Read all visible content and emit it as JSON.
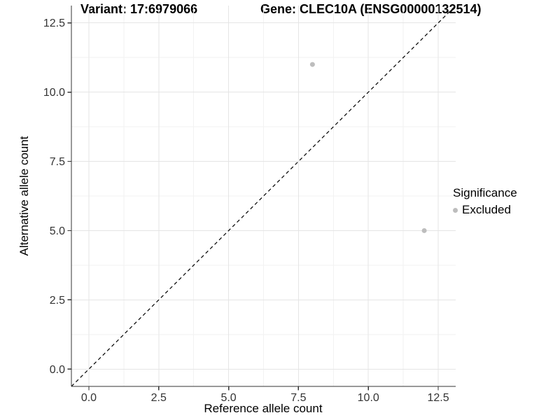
{
  "plot_title": {
    "variant": "Variant: 17:6979066",
    "gene": "Gene: CLEC10A (ENSG00000132514)"
  },
  "legend": {
    "title": "Significance",
    "items": [
      {
        "label": "Excluded",
        "marker": "circle",
        "color": "#bdbdbd"
      }
    ]
  },
  "chart_data": {
    "type": "scatter",
    "title": "Variant: 17:6979066   Gene: CLEC10A (ENSG00000132514)",
    "xlabel": "Reference allele count",
    "ylabel": "Alternative allele count",
    "xlim": [
      -0.625,
      13.125
    ],
    "ylim": [
      -0.625,
      13.125
    ],
    "x_ticks": [
      0,
      2.5,
      5,
      7.5,
      10,
      12.5
    ],
    "x_tick_labels": [
      "0.0",
      "2.5",
      "5.0",
      "7.5",
      "10.0",
      "12.5"
    ],
    "y_ticks": [
      0,
      2.5,
      5,
      7.5,
      10,
      12.5
    ],
    "y_tick_labels": [
      "0.0",
      "2.5",
      "5.0",
      "7.5",
      "10.0",
      "12.5"
    ],
    "minor_ticks": [
      1.25,
      3.75,
      6.25,
      8.75,
      11.25
    ],
    "grid": true,
    "legend_position": "right",
    "reference_line": {
      "type": "identity",
      "slope": 1,
      "intercept": 0,
      "linetype": "dashed",
      "color": "#000000"
    },
    "series": [
      {
        "name": "Excluded",
        "color": "#bdbdbd",
        "points": [
          {
            "x": 8,
            "y": 11
          },
          {
            "x": 12,
            "y": 5
          }
        ]
      }
    ],
    "colors": {
      "background": "#ffffff",
      "grid_major": "#e5e5e5",
      "grid_minor": "#f2f2f2",
      "axis_line": "#333333",
      "tick_text": "#333333",
      "point": "#bdbdbd"
    }
  }
}
